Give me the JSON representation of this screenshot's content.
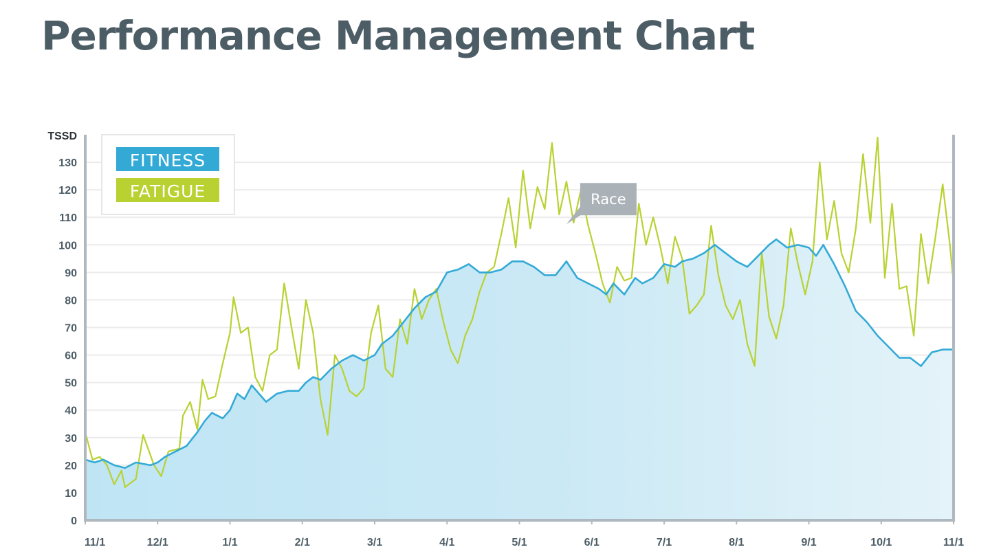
{
  "chart_data": {
    "type": "line",
    "title": "Performance Management Chart",
    "ylabel": "TSSD",
    "xlabel": "",
    "ylim": [
      0,
      140
    ],
    "yticks": [
      0,
      10,
      20,
      30,
      40,
      50,
      60,
      70,
      80,
      90,
      100,
      110,
      120,
      130
    ],
    "categories": [
      "11/1",
      "12/1",
      "1/1",
      "2/1",
      "3/1",
      "4/1",
      "5/1",
      "6/1",
      "7/1",
      "8/1",
      "9/1",
      "10/1",
      "11/1"
    ],
    "legend_position": "top-left",
    "colors": {
      "fitness": "#33aad6",
      "fatigue": "#b9d131",
      "area": "#c6e7f4",
      "grid": "#ececec",
      "axis": "#b0b8bf",
      "race_box": "#aab2b8"
    },
    "annotations": [
      {
        "label": "Race",
        "x": 6.65,
        "y": 108
      }
    ],
    "series": [
      {
        "name": "FITNESS",
        "values": [
          [
            0,
            22
          ],
          [
            0.13,
            21
          ],
          [
            0.25,
            22
          ],
          [
            0.4,
            20
          ],
          [
            0.55,
            19
          ],
          [
            0.7,
            21
          ],
          [
            0.9,
            20
          ],
          [
            1.0,
            21
          ],
          [
            1.1,
            23
          ],
          [
            1.25,
            25
          ],
          [
            1.4,
            27
          ],
          [
            1.55,
            32
          ],
          [
            1.65,
            36
          ],
          [
            1.75,
            39
          ],
          [
            1.9,
            37
          ],
          [
            2.0,
            40
          ],
          [
            2.1,
            46
          ],
          [
            2.2,
            44
          ],
          [
            2.3,
            49
          ],
          [
            2.4,
            46
          ],
          [
            2.5,
            43
          ],
          [
            2.65,
            46
          ],
          [
            2.8,
            47
          ],
          [
            2.95,
            47
          ],
          [
            3.05,
            50
          ],
          [
            3.15,
            52
          ],
          [
            3.25,
            51
          ],
          [
            3.4,
            55
          ],
          [
            3.55,
            58
          ],
          [
            3.7,
            60
          ],
          [
            3.85,
            58
          ],
          [
            4.0,
            60
          ],
          [
            4.1,
            64
          ],
          [
            4.25,
            67
          ],
          [
            4.4,
            72
          ],
          [
            4.55,
            77
          ],
          [
            4.7,
            81
          ],
          [
            4.85,
            83
          ],
          [
            5.0,
            90
          ],
          [
            5.15,
            91
          ],
          [
            5.3,
            93
          ],
          [
            5.45,
            90
          ],
          [
            5.6,
            90
          ],
          [
            5.75,
            91
          ],
          [
            5.9,
            94
          ],
          [
            6.05,
            94
          ],
          [
            6.2,
            92
          ],
          [
            6.35,
            89
          ],
          [
            6.5,
            89
          ],
          [
            6.65,
            94
          ],
          [
            6.8,
            88
          ],
          [
            6.95,
            86
          ],
          [
            7.1,
            84
          ],
          [
            7.2,
            82
          ],
          [
            7.3,
            86
          ],
          [
            7.45,
            82
          ],
          [
            7.6,
            88
          ],
          [
            7.7,
            86
          ],
          [
            7.85,
            88
          ],
          [
            8.0,
            93
          ],
          [
            8.15,
            92
          ],
          [
            8.25,
            94
          ],
          [
            8.4,
            95
          ],
          [
            8.55,
            97
          ],
          [
            8.7,
            100
          ],
          [
            8.85,
            97
          ],
          [
            9.0,
            94
          ],
          [
            9.15,
            92
          ],
          [
            9.3,
            96
          ],
          [
            9.45,
            100
          ],
          [
            9.55,
            102
          ],
          [
            9.7,
            99
          ],
          [
            9.85,
            100
          ],
          [
            10.0,
            99
          ],
          [
            10.1,
            96
          ],
          [
            10.2,
            100
          ],
          [
            10.35,
            93
          ],
          [
            10.5,
            85
          ],
          [
            10.65,
            76
          ],
          [
            10.8,
            72
          ],
          [
            10.95,
            67
          ],
          [
            11.1,
            63
          ],
          [
            11.25,
            59
          ],
          [
            11.4,
            59
          ],
          [
            11.55,
            56
          ],
          [
            11.7,
            61
          ],
          [
            11.85,
            62
          ],
          [
            12.0,
            62
          ]
        ]
      },
      {
        "name": "FATIGUE",
        "values": [
          [
            0,
            32
          ],
          [
            0.1,
            22
          ],
          [
            0.2,
            23
          ],
          [
            0.3,
            20
          ],
          [
            0.4,
            13
          ],
          [
            0.5,
            18
          ],
          [
            0.55,
            12
          ],
          [
            0.7,
            15
          ],
          [
            0.8,
            31
          ],
          [
            0.95,
            20
          ],
          [
            1.05,
            16
          ],
          [
            1.15,
            25
          ],
          [
            1.3,
            26
          ],
          [
            1.35,
            38
          ],
          [
            1.45,
            43
          ],
          [
            1.55,
            33
          ],
          [
            1.62,
            51
          ],
          [
            1.7,
            44
          ],
          [
            1.8,
            45
          ],
          [
            1.9,
            57
          ],
          [
            2.0,
            68
          ],
          [
            2.05,
            81
          ],
          [
            2.15,
            68
          ],
          [
            2.25,
            70
          ],
          [
            2.35,
            52
          ],
          [
            2.45,
            47
          ],
          [
            2.55,
            60
          ],
          [
            2.65,
            62
          ],
          [
            2.75,
            86
          ],
          [
            2.85,
            70
          ],
          [
            2.95,
            55
          ],
          [
            3.05,
            80
          ],
          [
            3.15,
            68
          ],
          [
            3.25,
            44
          ],
          [
            3.35,
            31
          ],
          [
            3.45,
            60
          ],
          [
            3.55,
            55
          ],
          [
            3.65,
            47
          ],
          [
            3.75,
            45
          ],
          [
            3.85,
            48
          ],
          [
            3.95,
            68
          ],
          [
            4.05,
            78
          ],
          [
            4.15,
            55
          ],
          [
            4.25,
            52
          ],
          [
            4.35,
            73
          ],
          [
            4.45,
            64
          ],
          [
            4.55,
            84
          ],
          [
            4.65,
            73
          ],
          [
            4.75,
            80
          ],
          [
            4.85,
            84
          ],
          [
            4.95,
            72
          ],
          [
            5.05,
            62
          ],
          [
            5.15,
            57
          ],
          [
            5.25,
            67
          ],
          [
            5.35,
            73
          ],
          [
            5.45,
            83
          ],
          [
            5.55,
            90
          ],
          [
            5.65,
            92
          ],
          [
            5.75,
            104
          ],
          [
            5.85,
            117
          ],
          [
            5.95,
            99
          ],
          [
            6.05,
            127
          ],
          [
            6.15,
            106
          ],
          [
            6.25,
            121
          ],
          [
            6.35,
            113
          ],
          [
            6.45,
            137
          ],
          [
            6.55,
            111
          ],
          [
            6.65,
            123
          ],
          [
            6.75,
            108
          ],
          [
            6.85,
            120
          ],
          [
            6.95,
            107
          ],
          [
            7.05,
            97
          ],
          [
            7.15,
            86
          ],
          [
            7.25,
            79
          ],
          [
            7.35,
            92
          ],
          [
            7.45,
            87
          ],
          [
            7.55,
            88
          ],
          [
            7.65,
            115
          ],
          [
            7.75,
            100
          ],
          [
            7.85,
            110
          ],
          [
            7.95,
            99
          ],
          [
            8.05,
            86
          ],
          [
            8.15,
            103
          ],
          [
            8.25,
            95
          ],
          [
            8.35,
            75
          ],
          [
            8.45,
            78
          ],
          [
            8.55,
            82
          ],
          [
            8.65,
            107
          ],
          [
            8.75,
            89
          ],
          [
            8.85,
            78
          ],
          [
            8.95,
            73
          ],
          [
            9.05,
            80
          ],
          [
            9.15,
            64
          ],
          [
            9.25,
            56
          ],
          [
            9.35,
            97
          ],
          [
            9.45,
            74
          ],
          [
            9.55,
            66
          ],
          [
            9.65,
            78
          ],
          [
            9.75,
            106
          ],
          [
            9.85,
            93
          ],
          [
            9.95,
            82
          ],
          [
            10.05,
            94
          ],
          [
            10.15,
            130
          ],
          [
            10.25,
            102
          ],
          [
            10.35,
            116
          ],
          [
            10.45,
            97
          ],
          [
            10.55,
            90
          ],
          [
            10.65,
            106
          ],
          [
            10.75,
            133
          ],
          [
            10.85,
            108
          ],
          [
            10.95,
            139
          ],
          [
            11.05,
            88
          ],
          [
            11.15,
            115
          ],
          [
            11.25,
            84
          ],
          [
            11.35,
            85
          ],
          [
            11.45,
            67
          ],
          [
            11.55,
            104
          ],
          [
            11.65,
            86
          ],
          [
            11.75,
            103
          ],
          [
            11.85,
            122
          ],
          [
            11.95,
            100
          ],
          [
            12.0,
            86
          ]
        ]
      }
    ]
  }
}
